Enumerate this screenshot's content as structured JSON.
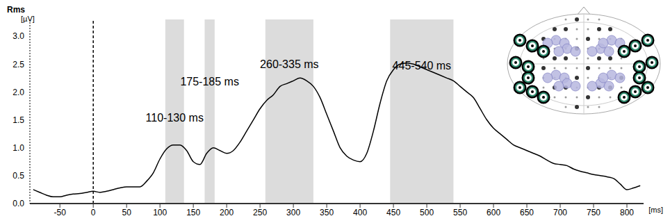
{
  "chart_data": {
    "type": "line",
    "ylabel": "Rms",
    "yunit": "[µV]",
    "xlabel": "[ms]",
    "x": [
      -90,
      -80,
      -70,
      -60,
      -50,
      -40,
      -30,
      -20,
      -10,
      0,
      10,
      20,
      30,
      40,
      50,
      60,
      70,
      80,
      90,
      100,
      110,
      120,
      130,
      140,
      150,
      160,
      170,
      180,
      190,
      200,
      210,
      220,
      230,
      240,
      250,
      260,
      270,
      280,
      290,
      300,
      310,
      320,
      330,
      340,
      350,
      360,
      370,
      380,
      390,
      400,
      410,
      420,
      430,
      440,
      450,
      460,
      470,
      480,
      490,
      500,
      510,
      520,
      530,
      540,
      550,
      560,
      570,
      580,
      590,
      600,
      610,
      620,
      630,
      640,
      650,
      660,
      670,
      680,
      690,
      700,
      710,
      720,
      730,
      740,
      750,
      760,
      770,
      780,
      790,
      800,
      810,
      820
    ],
    "values": [
      0.25,
      0.2,
      0.15,
      0.12,
      0.12,
      0.15,
      0.17,
      0.18,
      0.2,
      0.22,
      0.2,
      0.22,
      0.25,
      0.28,
      0.3,
      0.3,
      0.3,
      0.4,
      0.55,
      0.8,
      0.98,
      1.05,
      1.05,
      0.95,
      0.75,
      0.7,
      0.9,
      1.0,
      0.95,
      0.9,
      0.95,
      1.1,
      1.3,
      1.5,
      1.7,
      1.85,
      1.95,
      2.1,
      2.15,
      2.2,
      2.25,
      2.2,
      2.1,
      1.9,
      1.6,
      1.3,
      1.0,
      0.85,
      0.78,
      0.75,
      0.9,
      1.3,
      1.8,
      2.2,
      2.4,
      2.5,
      2.52,
      2.5,
      2.45,
      2.4,
      2.35,
      2.3,
      2.25,
      2.2,
      2.1,
      2.0,
      1.9,
      1.7,
      1.5,
      1.35,
      1.25,
      1.15,
      1.05,
      1.0,
      0.95,
      0.9,
      0.85,
      0.78,
      0.72,
      0.7,
      0.68,
      0.62,
      0.58,
      0.55,
      0.52,
      0.5,
      0.48,
      0.45,
      0.35,
      0.25,
      0.28,
      0.32
    ],
    "color": "#000000",
    "xlim": [
      -95,
      825
    ],
    "xticks": [
      -50,
      0,
      50,
      100,
      150,
      200,
      250,
      300,
      350,
      400,
      450,
      500,
      550,
      600,
      650,
      700,
      750,
      800
    ],
    "ylim": [
      0,
      3.3
    ],
    "yticks": [
      {
        "value": 0,
        "label": "0.0"
      },
      {
        "value": 0.5,
        "label": "0.5"
      },
      {
        "value": 1,
        "label": "1.0"
      },
      {
        "value": 1.5,
        "label": "1.5"
      },
      {
        "value": 2,
        "label": "2.0"
      },
      {
        "value": 2.5,
        "label": "2.5"
      },
      {
        "value": 3,
        "label": "3.0"
      }
    ],
    "regions": [
      {
        "start": 108,
        "end": 136,
        "label": "110-130 ms"
      },
      {
        "start": 167,
        "end": 182,
        "label": "175-185 ms"
      },
      {
        "start": 258,
        "end": 330,
        "label": "260-335 ms"
      },
      {
        "start": 445,
        "end": 540,
        "label": "445-540 ms"
      }
    ],
    "vlines": [
      0
    ],
    "grid": false
  }
}
